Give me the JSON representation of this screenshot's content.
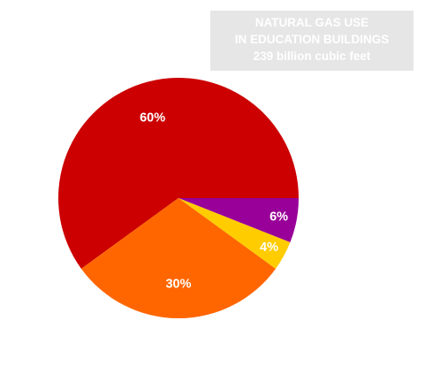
{
  "chart_data": {
    "type": "pie",
    "title_lines": [
      "NATURAL GAS USE",
      "IN EDUCATION BUILDINGS",
      "239 billion cubic feet"
    ],
    "slices": [
      {
        "label": "60%",
        "value": 60,
        "color": "#cc0000"
      },
      {
        "label": "30%",
        "value": 30,
        "color": "#ff6600"
      },
      {
        "label": "4%",
        "value": 4,
        "color": "#ffcc00"
      },
      {
        "label": "6%",
        "value": 6,
        "color": "#990099"
      }
    ]
  }
}
